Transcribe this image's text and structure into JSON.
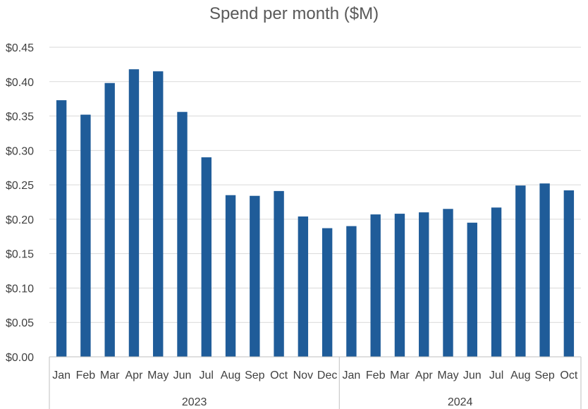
{
  "chart_data": {
    "type": "bar",
    "title": "Spend per month ($M)",
    "xlabel": "",
    "ylabel": "",
    "ylim": [
      0,
      0.45
    ],
    "y_ticks": [
      "$0.00",
      "$0.05",
      "$0.10",
      "$0.15",
      "$0.20",
      "$0.25",
      "$0.30",
      "$0.35",
      "$0.40",
      "$0.45"
    ],
    "y_tick_values": [
      0,
      0.05,
      0.1,
      0.15,
      0.2,
      0.25,
      0.3,
      0.35,
      0.4,
      0.45
    ],
    "grid": true,
    "legend": "none",
    "bar_color": "#1F5C99",
    "groups": [
      {
        "name": "2023",
        "categories": [
          "Jan",
          "Feb",
          "Mar",
          "Apr",
          "May",
          "Jun",
          "Jul",
          "Aug",
          "Sep",
          "Oct",
          "Nov",
          "Dec"
        ],
        "values": [
          0.373,
          0.352,
          0.398,
          0.418,
          0.415,
          0.356,
          0.29,
          0.235,
          0.234,
          0.241,
          0.204,
          0.187
        ]
      },
      {
        "name": "2024",
        "categories": [
          "Jan",
          "Feb",
          "Mar",
          "Apr",
          "May",
          "Jun",
          "Jul",
          "Aug",
          "Sep",
          "Oct"
        ],
        "values": [
          0.19,
          0.207,
          0.208,
          0.21,
          0.215,
          0.195,
          0.217,
          0.249,
          0.252,
          0.242
        ]
      }
    ]
  }
}
